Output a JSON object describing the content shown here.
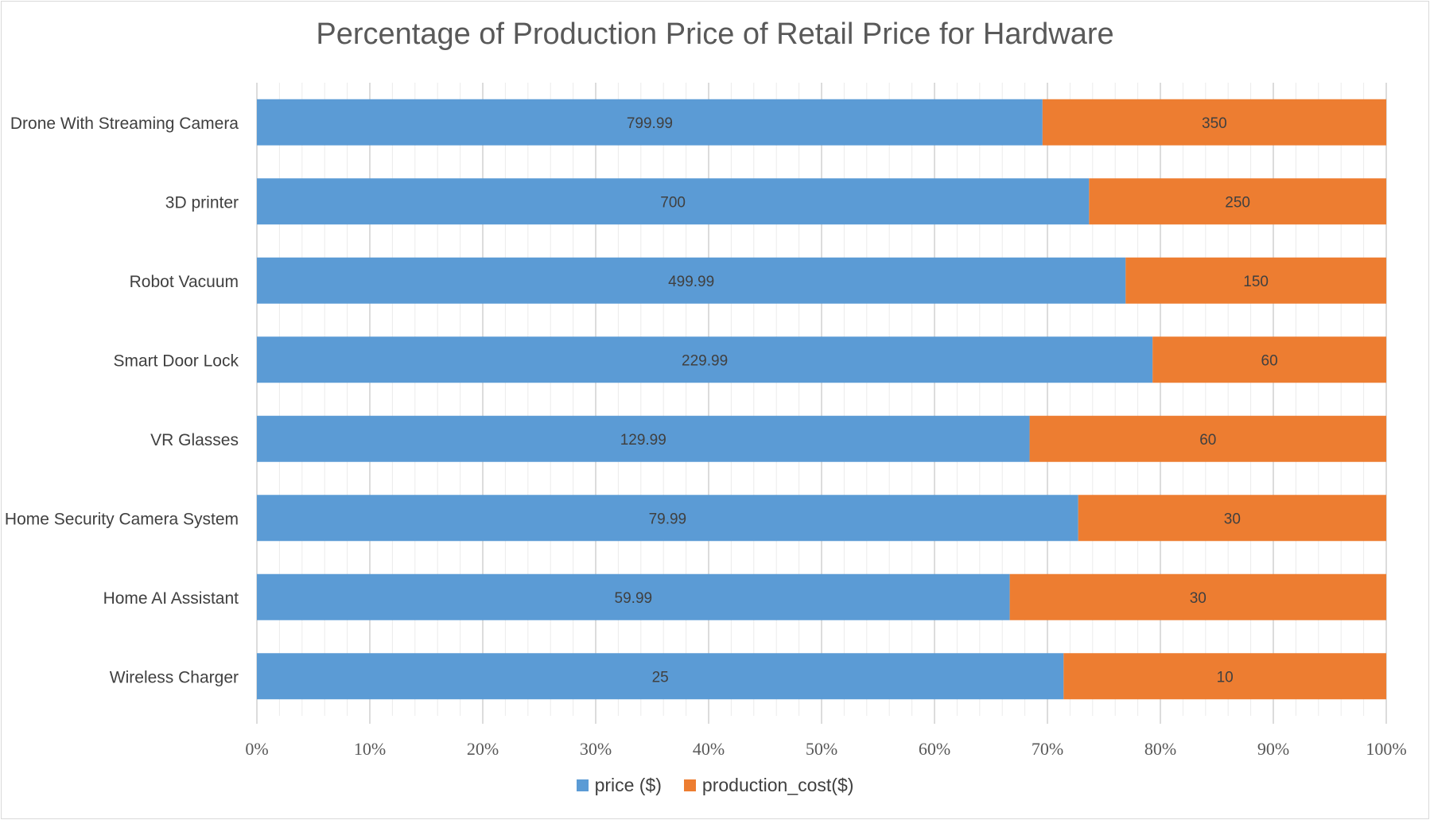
{
  "chart_data": {
    "type": "bar",
    "orientation": "horizontal",
    "stacked": "percent",
    "title": "Percentage of Production Price of Retail Price for Hardware",
    "xlabel": "",
    "ylabel": "",
    "categories": [
      "Drone With Streaming Camera",
      "3D printer",
      "Robot Vacuum",
      "Smart Door Lock",
      "VR Glasses",
      "Home Security Camera System",
      "Home AI Assistant",
      "Wireless Charger"
    ],
    "series": [
      {
        "name": "price ($)",
        "color": "#5B9BD5",
        "values": [
          799.99,
          700,
          499.99,
          229.99,
          129.99,
          79.99,
          59.99,
          25
        ],
        "labels": [
          "799.99",
          "700",
          "499.99",
          "229.99",
          "129.99",
          "79.99",
          "59.99",
          "25"
        ]
      },
      {
        "name": "production_cost($)",
        "color": "#ED7D31",
        "values": [
          350,
          250,
          150,
          60,
          60,
          30,
          30,
          10
        ],
        "labels": [
          "350",
          "250",
          "150",
          "60",
          "60",
          "30",
          "30",
          "10"
        ]
      }
    ],
    "x_ticks": [
      "0%",
      "10%",
      "20%",
      "30%",
      "40%",
      "50%",
      "60%",
      "70%",
      "80%",
      "90%",
      "100%"
    ],
    "xlim": [
      0,
      100
    ],
    "grid": "on",
    "legend_position": "bottom"
  }
}
